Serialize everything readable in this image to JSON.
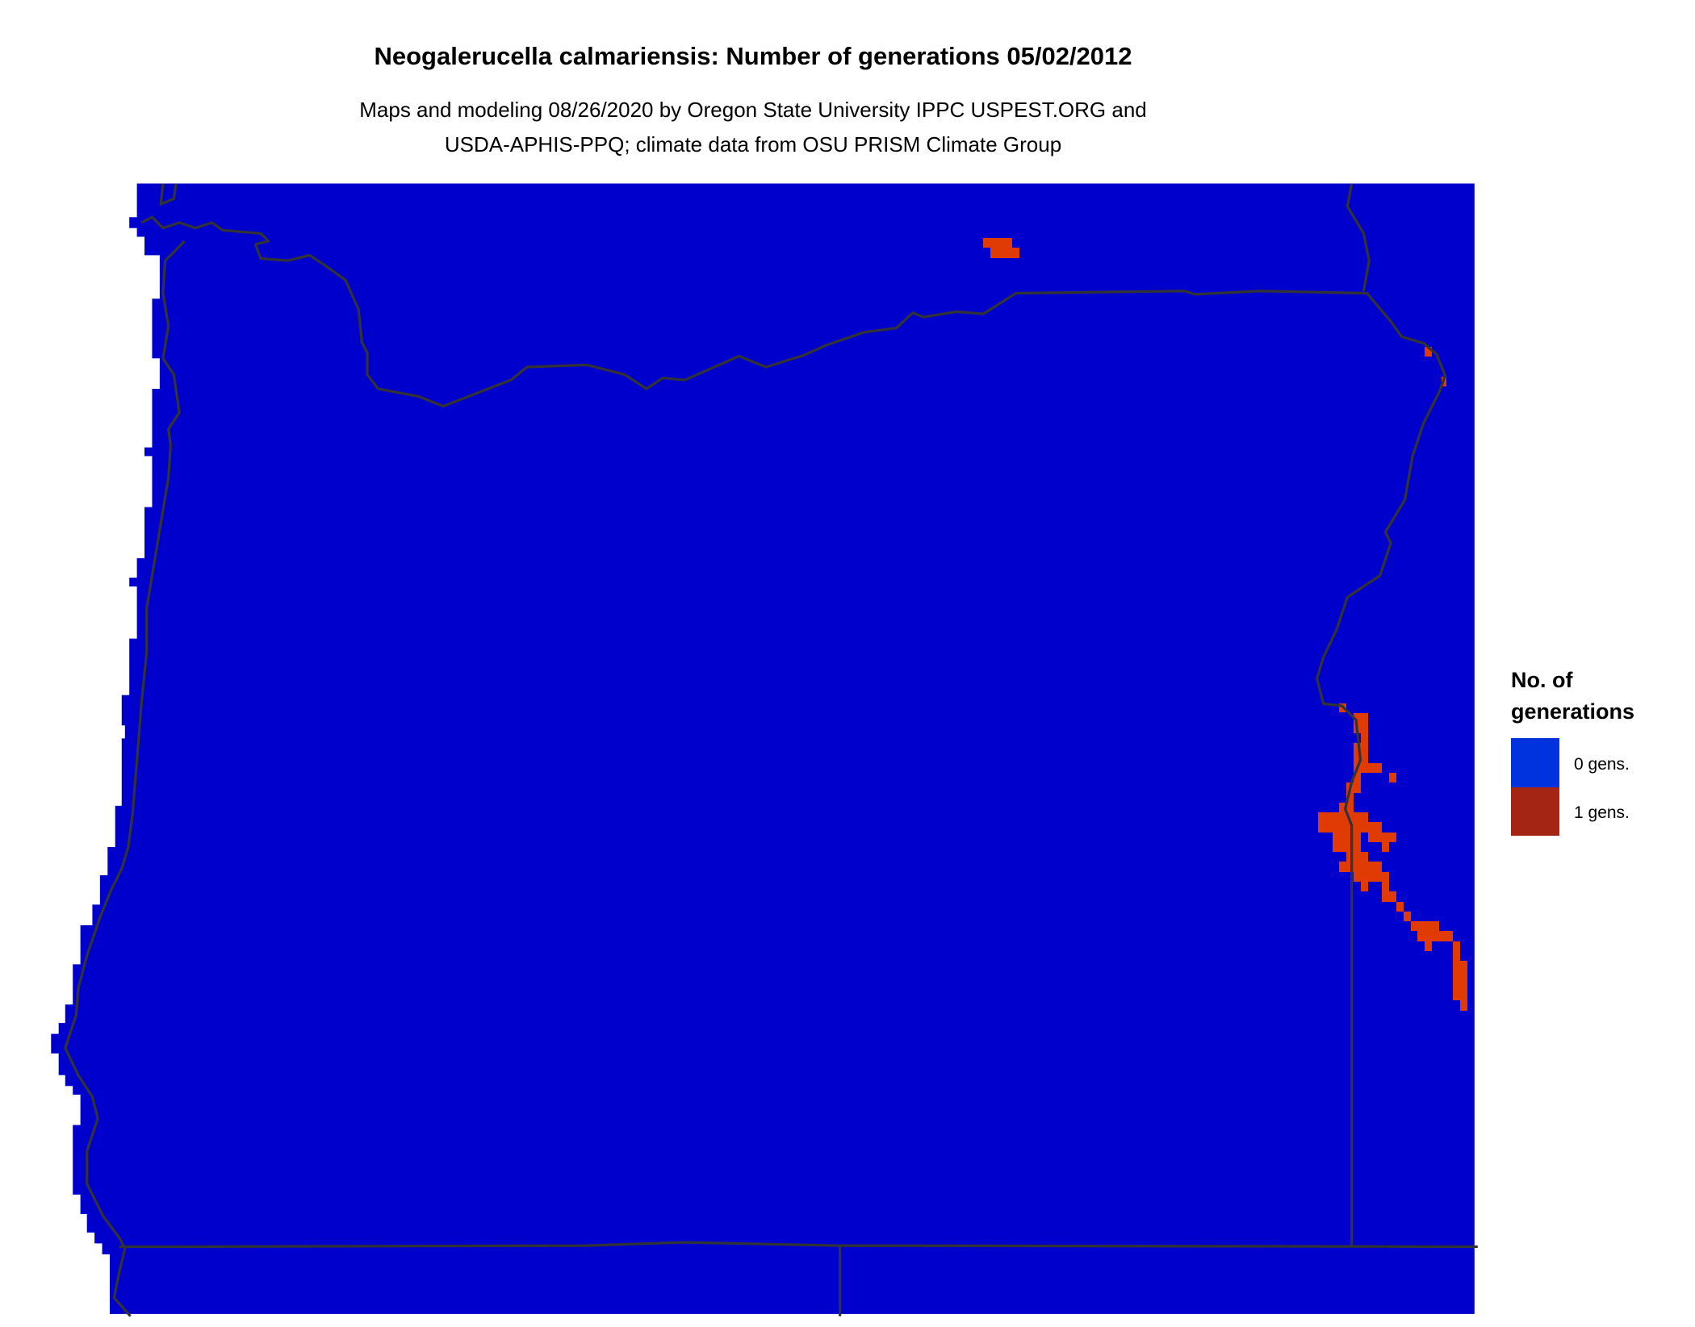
{
  "title": "Neogalerucella calmariensis: Number of generations 05/02/2012",
  "subtitle": [
    "Maps and modeling 08/26/2020 by Oregon State University IPPC USPEST.ORG and",
    "USDA-APHIS-PPQ; climate data from OSU PRISM Climate Group"
  ],
  "legend": {
    "title": [
      "No. of",
      "generations"
    ],
    "items": [
      {
        "label": "0 gens.",
        "color": "#0033DD"
      },
      {
        "label": "1 gens.",
        "color": "#A52515"
      }
    ]
  },
  "map": {
    "region": "Oregon",
    "background_color": "#0000CC",
    "highlight_color": "#E03A05",
    "border_color": "#333333"
  }
}
